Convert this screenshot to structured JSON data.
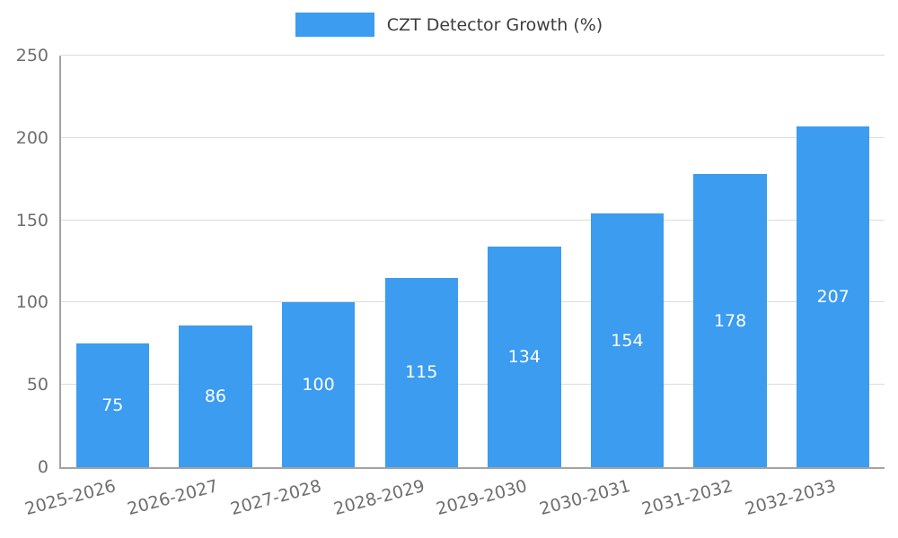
{
  "chart_data": {
    "type": "bar",
    "title": "CZT Detector Growth (%)",
    "categories": [
      "2025-2026",
      "2026-2027",
      "2027-2028",
      "2028-2029",
      "2029-2030",
      "2030-2031",
      "2031-2032",
      "2032-2033"
    ],
    "values": [
      75,
      86,
      100,
      115,
      134,
      154,
      178,
      207
    ],
    "xlabel": "",
    "ylabel": "",
    "ylim": [
      0,
      250
    ],
    "yticks": [
      0,
      50,
      100,
      150,
      200,
      250
    ],
    "grid": true,
    "legend_position": "top-center",
    "value_labels": "inside-center",
    "bar_color": "#3b9cf0",
    "value_label_color": "#ffffff",
    "grid_color": "#dcdcdc",
    "axis_color": "#a3a3a3",
    "tick_text_color": "#6e6e6e",
    "legend_text_color": "#3d3d3d",
    "background_color": "#ffffff"
  }
}
